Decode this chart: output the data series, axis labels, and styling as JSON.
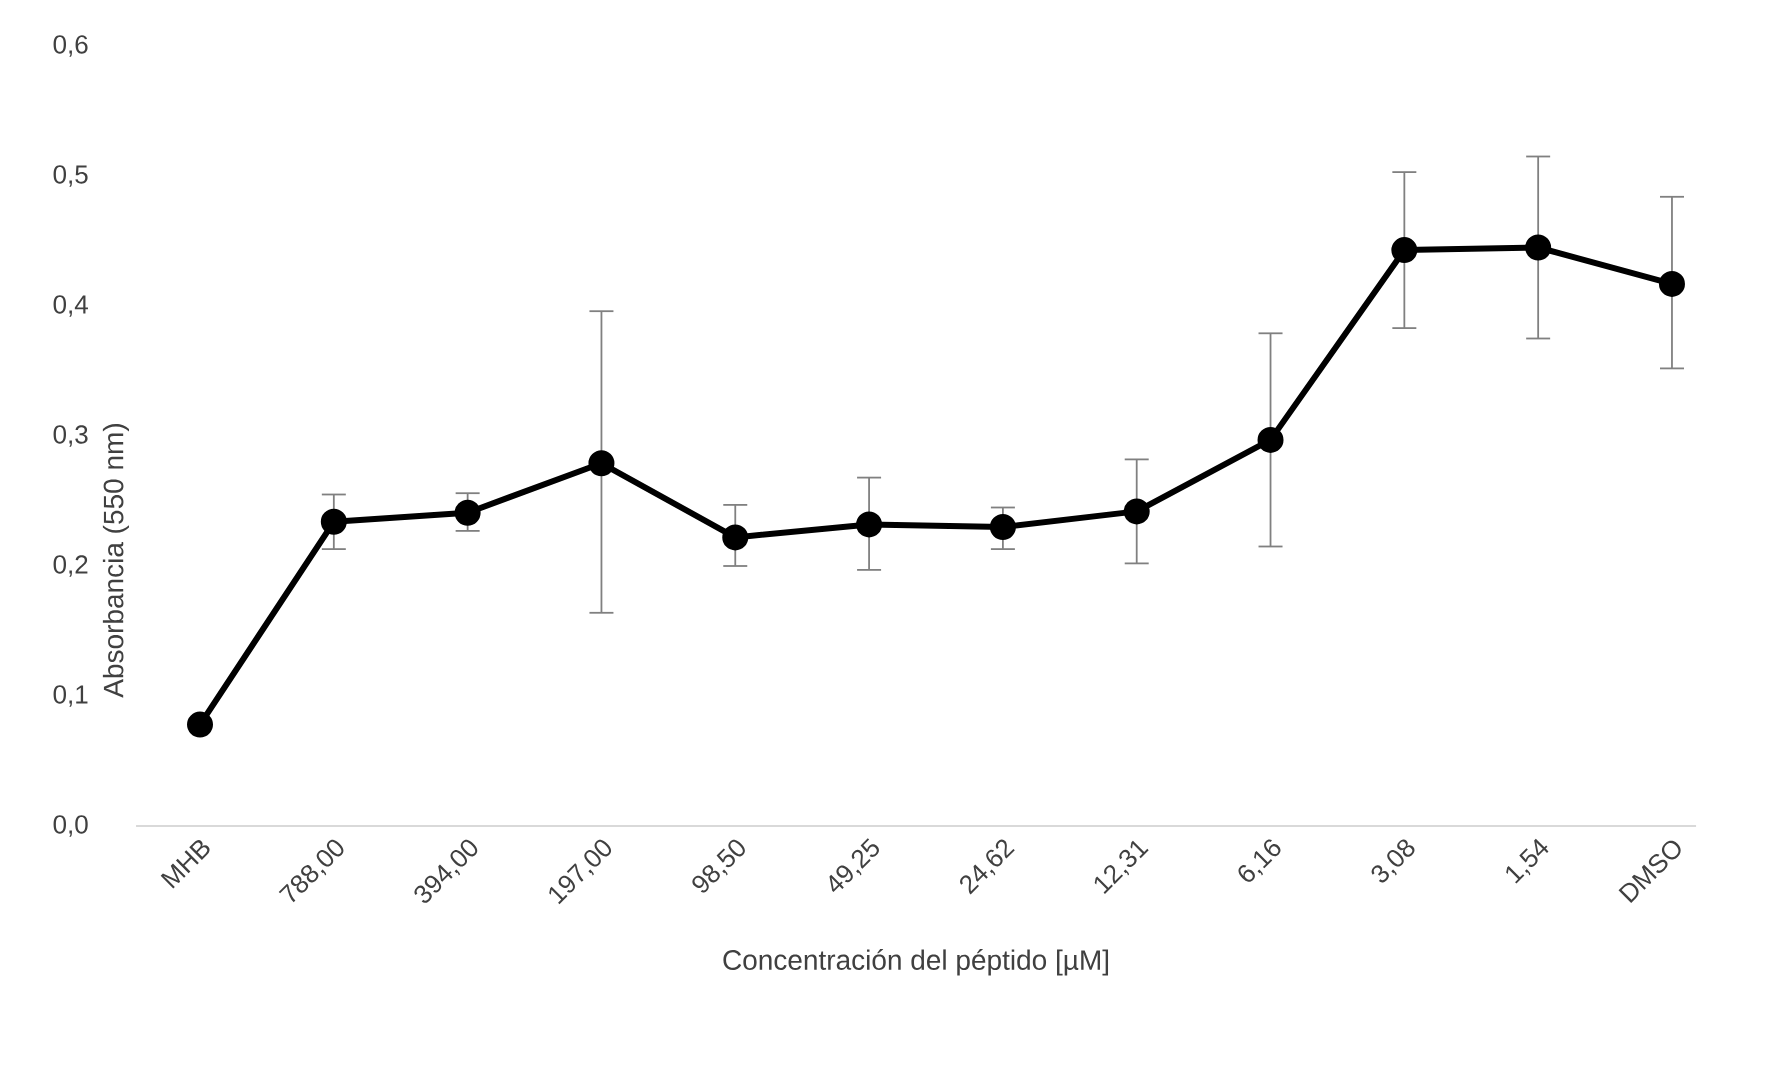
{
  "chart_data": {
    "type": "line",
    "xlabel": "Concentración del péptido [µM]",
    "ylabel": "Absorbancia (550 nm)",
    "categories": [
      "MHB",
      "788,00",
      "394,00",
      "197,00",
      "98,50",
      "49,25",
      "24,62",
      "12,31",
      "6,16",
      "3,08",
      "1,54",
      "DMSO"
    ],
    "series": [
      {
        "color": "#000000",
        "values": [
          0.078,
          0.234,
          0.241,
          0.279,
          0.222,
          0.232,
          0.23,
          0.242,
          0.297,
          0.443,
          0.445,
          0.417
        ],
        "errors": [
          null,
          [
            0.213,
            0.255
          ],
          [
            0.227,
            0.256
          ],
          [
            0.164,
            0.396
          ],
          [
            0.2,
            0.247
          ],
          [
            0.197,
            0.268
          ],
          [
            0.213,
            0.245
          ],
          [
            0.202,
            0.282
          ],
          [
            0.215,
            0.379
          ],
          [
            0.383,
            0.503
          ],
          [
            0.375,
            0.515
          ],
          [
            0.352,
            0.484
          ]
        ]
      }
    ],
    "ylim": [
      0,
      0.6
    ],
    "yticks": [
      {
        "value": 0,
        "label": "0,0"
      },
      {
        "value": 0.1,
        "label": "0,1"
      },
      {
        "value": 0.2,
        "label": "0,2"
      },
      {
        "value": 0.3,
        "label": "0,3"
      },
      {
        "value": 0.4,
        "label": "0,4"
      },
      {
        "value": 0.5,
        "label": "0,5"
      },
      {
        "value": 0.6,
        "label": "0,6"
      }
    ],
    "marker": "circle",
    "line_style": "solid"
  }
}
